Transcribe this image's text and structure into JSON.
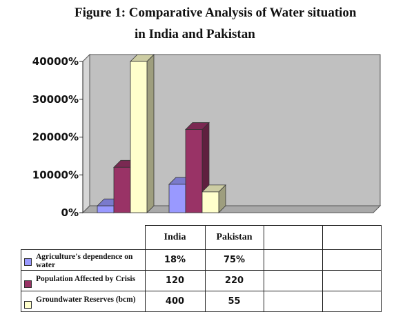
{
  "title": {
    "line1": "Figure 1: Comparative Analysis of Water situation",
    "line2": "in India and Pakistan"
  },
  "colors": {
    "plot_background": "#c0c0c0",
    "series": [
      "#9999ff",
      "#993366",
      "#ffffcc"
    ]
  },
  "chart_data": {
    "type": "bar",
    "style": "3d-clustered-column",
    "categories": [
      "India",
      "Pakistan"
    ],
    "series": [
      {
        "name": "Agriculture's dependence on water",
        "values": [
          18,
          75
        ],
        "display": [
          "18%",
          "75%"
        ]
      },
      {
        "name": "Population Affected by Crisis",
        "values": [
          120,
          220
        ],
        "display": [
          "120",
          "220"
        ]
      },
      {
        "name": "Groundwater Reserves (bcm)",
        "values": [
          400,
          55
        ],
        "display": [
          "400",
          "55"
        ]
      }
    ],
    "y_ticks": [
      {
        "value": 0,
        "label": "0%"
      },
      {
        "value": 100,
        "label": "10000%"
      },
      {
        "value": 200,
        "label": "20000%"
      },
      {
        "value": 300,
        "label": "30000%"
      },
      {
        "value": 400,
        "label": "40000%"
      }
    ],
    "ylim": [
      0,
      400
    ],
    "grid": false,
    "legend": "data-table",
    "extra_empty_columns": 2
  }
}
